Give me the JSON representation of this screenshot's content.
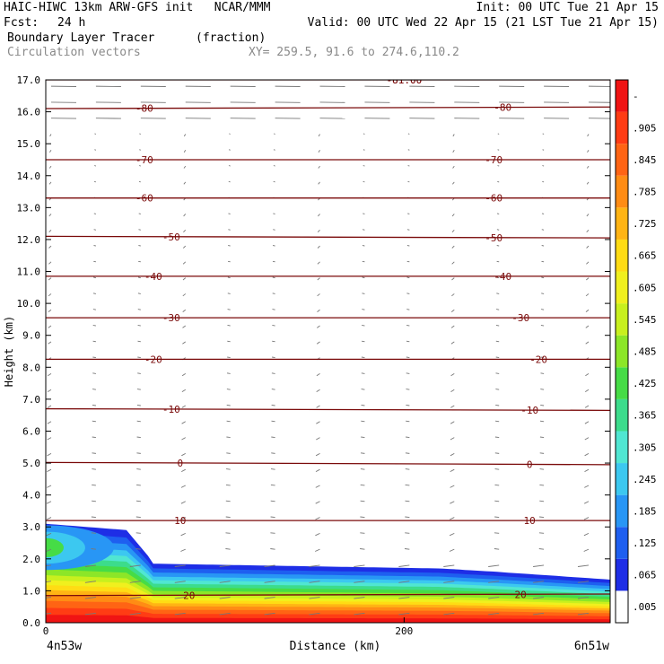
{
  "header": {
    "title_left": "HAIC-HIWC 13km ARW-GFS init   NCAR/MMM",
    "init": "Init: 00 UTC Tue 21 Apr 15",
    "fcst_label": "Fcst:",
    "fcst_value": "24 h",
    "valid": "Valid: 00 UTC Wed 22 Apr 15 (21 LST Tue 21 Apr 15)",
    "field_name": "Boundary Layer Tracer",
    "field_units": "(fraction)",
    "vector_label": "Circulation vectors",
    "xy_label": "XY= 259.5, 91.6 to 274.6,110.2"
  },
  "chart_data": {
    "type": "heatmap",
    "ylabel": "Height (km)",
    "xlabel": "Distance (km)",
    "ylim": [
      0,
      17
    ],
    "xlim": [
      0,
      315
    ],
    "y_ticks": [
      "0.0",
      "1.0",
      "2.0",
      "3.0",
      "4.0",
      "5.0",
      "6.0",
      "7.0",
      "8.0",
      "9.0",
      "10.0",
      "11.0",
      "12.0",
      "13.0",
      "14.0",
      "15.0",
      "16.0",
      "17.0"
    ],
    "x_ticks": [
      {
        "value": 0,
        "label": "0"
      },
      {
        "value": 200,
        "label": "200"
      }
    ],
    "x_endpoints": {
      "left": "4n53w",
      "right": "6n51w"
    },
    "isotherms": [
      {
        "label": "20",
        "left_km": 0.85,
        "right_km": 0.9
      },
      {
        "label": "10",
        "left_km": 3.2,
        "right_km": 3.2
      },
      {
        "label": "0",
        "left_km": 5.02,
        "right_km": 4.95
      },
      {
        "label": "-10",
        "left_km": 6.7,
        "right_km": 6.65
      },
      {
        "label": "-20",
        "left_km": 8.25,
        "right_km": 8.25
      },
      {
        "label": "-30",
        "left_km": 9.55,
        "right_km": 9.55
      },
      {
        "label": "-40",
        "left_km": 10.85,
        "right_km": 10.85
      },
      {
        "label": "-50",
        "left_km": 12.1,
        "right_km": 12.05
      },
      {
        "label": "-60",
        "left_km": 13.3,
        "right_km": 13.3
      },
      {
        "label": "-70",
        "left_km": 14.5,
        "right_km": 14.5
      },
      {
        "label": "-80",
        "left_km": 16.1,
        "right_km": 16.15
      },
      {
        "label": "-81.00",
        "left_km": 17.0,
        "right_km": 17.0
      }
    ],
    "isotherm_label_positions_km": {
      "20": [
        80,
        265
      ],
      "10": [
        75,
        270
      ],
      "0": [
        75,
        270
      ],
      "-10": [
        70,
        270
      ],
      "-20": [
        60,
        275
      ],
      "-30": [
        70,
        265
      ],
      "-40": [
        60,
        255
      ],
      "-50": [
        70,
        250
      ],
      "-60": [
        55,
        250
      ],
      "-70": [
        55,
        250
      ],
      "-80": [
        55,
        255
      ],
      "-81.00": [
        200,
        200
      ]
    },
    "colorbar": {
      "labels": [
        ".005",
        ".065",
        ".125",
        ".185",
        ".245",
        ".305",
        ".365",
        ".425",
        ".485",
        ".545",
        ".605",
        ".665",
        ".725",
        ".785",
        ".845",
        ".905",
        "-"
      ],
      "colors": [
        "#ffffff",
        "#1e2ee6",
        "#1e5ff0",
        "#2896f5",
        "#3cc8f0",
        "#50e6d2",
        "#3cdc8c",
        "#46dc46",
        "#8ce628",
        "#c8f01e",
        "#f0f01e",
        "#ffdc14",
        "#ffb414",
        "#ff8c14",
        "#ff6414",
        "#ff3c14",
        "#f01414"
      ]
    }
  }
}
